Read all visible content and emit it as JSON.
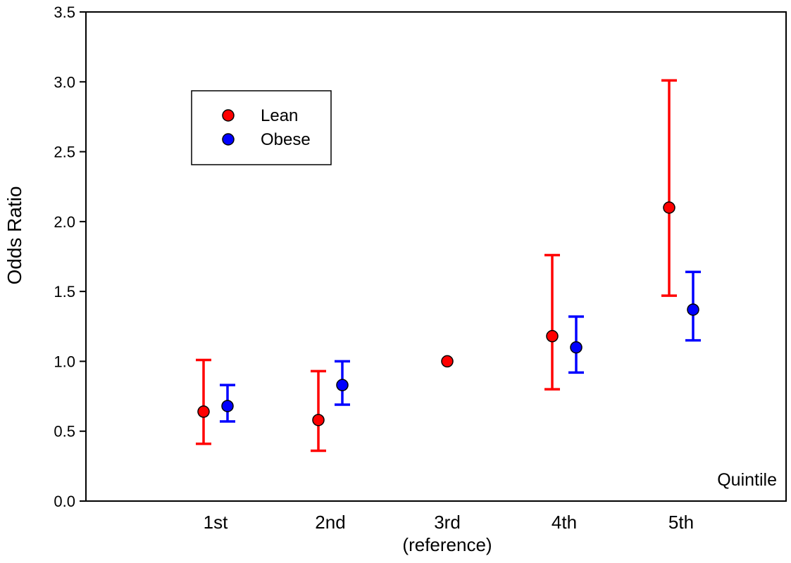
{
  "chart_data": {
    "type": "scatter",
    "title": "",
    "xlabel": "",
    "ylabel": "Odds Ratio",
    "annotation": "Quintile",
    "categories": [
      "1st",
      "2nd",
      "3rd",
      "4th",
      "5th"
    ],
    "category_sublabels": [
      "",
      "",
      "(reference)",
      "",
      ""
    ],
    "ylim": [
      0.0,
      3.5
    ],
    "yticks": [
      "0.0",
      "0.5",
      "1.0",
      "1.5",
      "2.0",
      "2.5",
      "3.0",
      "3.5"
    ],
    "grid": false,
    "legend_position": "top-left",
    "series": [
      {
        "name": "Lean",
        "color": "#ff0000",
        "values": [
          0.64,
          0.58,
          1.0,
          1.18,
          2.1
        ],
        "lower": [
          0.41,
          0.36,
          null,
          0.8,
          1.47
        ],
        "upper": [
          1.01,
          0.93,
          null,
          1.76,
          3.01
        ]
      },
      {
        "name": "Obese",
        "color": "#0000ff",
        "values": [
          0.68,
          0.83,
          null,
          1.1,
          1.37
        ],
        "lower": [
          0.57,
          0.69,
          null,
          0.92,
          1.15
        ],
        "upper": [
          0.83,
          1.0,
          null,
          1.32,
          1.64
        ]
      }
    ]
  }
}
